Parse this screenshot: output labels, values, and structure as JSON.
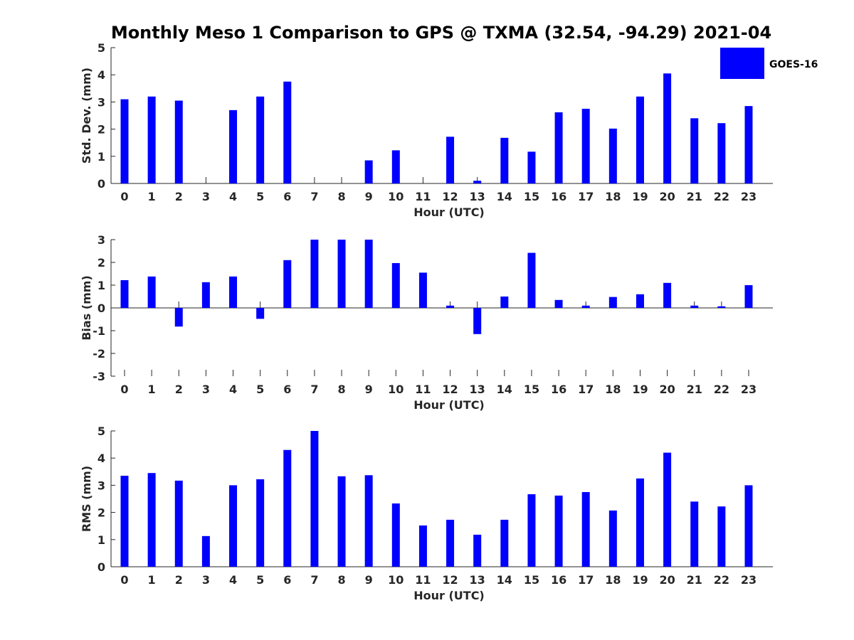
{
  "title": "Monthly Meso 1 Comparison to GPS @ TXMA (32.54, -94.29) 2021-04",
  "legend": {
    "label": "GOES-16",
    "color": "#0000ff",
    "placement": "top-right"
  },
  "chart_data": [
    {
      "type": "bar",
      "xlabel": "Hour (UTC)",
      "ylabel": "Std. Dev. (mm)",
      "ylim": [
        0,
        5
      ],
      "yticks": [
        0,
        1,
        2,
        3,
        4,
        5
      ],
      "grid": false,
      "categories": [
        "0",
        "1",
        "2",
        "3",
        "4",
        "5",
        "6",
        "7",
        "8",
        "9",
        "10",
        "11",
        "12",
        "13",
        "14",
        "15",
        "16",
        "17",
        "18",
        "19",
        "20",
        "21",
        "22",
        "23"
      ],
      "series": [
        {
          "name": "GOES-16",
          "values": [
            3.1,
            3.2,
            3.05,
            0,
            2.7,
            3.2,
            3.75,
            0,
            0,
            0.85,
            1.22,
            0,
            1.72,
            0.1,
            1.68,
            1.17,
            2.62,
            2.75,
            2.02,
            3.2,
            4.05,
            2.4,
            2.22,
            2.85
          ]
        }
      ]
    },
    {
      "type": "bar",
      "xlabel": "Hour (UTC)",
      "ylabel": "Bias (mm)",
      "ylim": [
        -3,
        3
      ],
      "yticks": [
        -3,
        -2,
        -1,
        0,
        1,
        2,
        3
      ],
      "grid": false,
      "categories": [
        "0",
        "1",
        "2",
        "3",
        "4",
        "5",
        "6",
        "7",
        "8",
        "9",
        "10",
        "11",
        "12",
        "13",
        "14",
        "15",
        "16",
        "17",
        "18",
        "19",
        "20",
        "21",
        "22",
        "23"
      ],
      "series": [
        {
          "name": "GOES-16",
          "values": [
            1.22,
            1.38,
            -0.82,
            1.13,
            1.38,
            -0.48,
            2.1,
            3.0,
            3.0,
            3.0,
            1.97,
            1.55,
            0.1,
            -1.15,
            0.5,
            2.42,
            0.35,
            0.1,
            0.48,
            0.6,
            1.1,
            0.1,
            0.07,
            1.0
          ]
        }
      ]
    },
    {
      "type": "bar",
      "xlabel": "Hour (UTC)",
      "ylabel": "RMS (mm)",
      "ylim": [
        0,
        5
      ],
      "yticks": [
        0,
        1,
        2,
        3,
        4,
        5
      ],
      "grid": false,
      "categories": [
        "0",
        "1",
        "2",
        "3",
        "4",
        "5",
        "6",
        "7",
        "8",
        "9",
        "10",
        "11",
        "12",
        "13",
        "14",
        "15",
        "16",
        "17",
        "18",
        "19",
        "20",
        "21",
        "22",
        "23"
      ],
      "series": [
        {
          "name": "GOES-16",
          "values": [
            3.35,
            3.45,
            3.17,
            1.13,
            3.0,
            3.22,
            4.3,
            5.0,
            3.33,
            3.37,
            2.33,
            1.52,
            1.73,
            1.18,
            1.73,
            2.67,
            2.62,
            2.75,
            2.07,
            3.25,
            4.2,
            2.4,
            2.22,
            3.0
          ]
        }
      ]
    }
  ]
}
